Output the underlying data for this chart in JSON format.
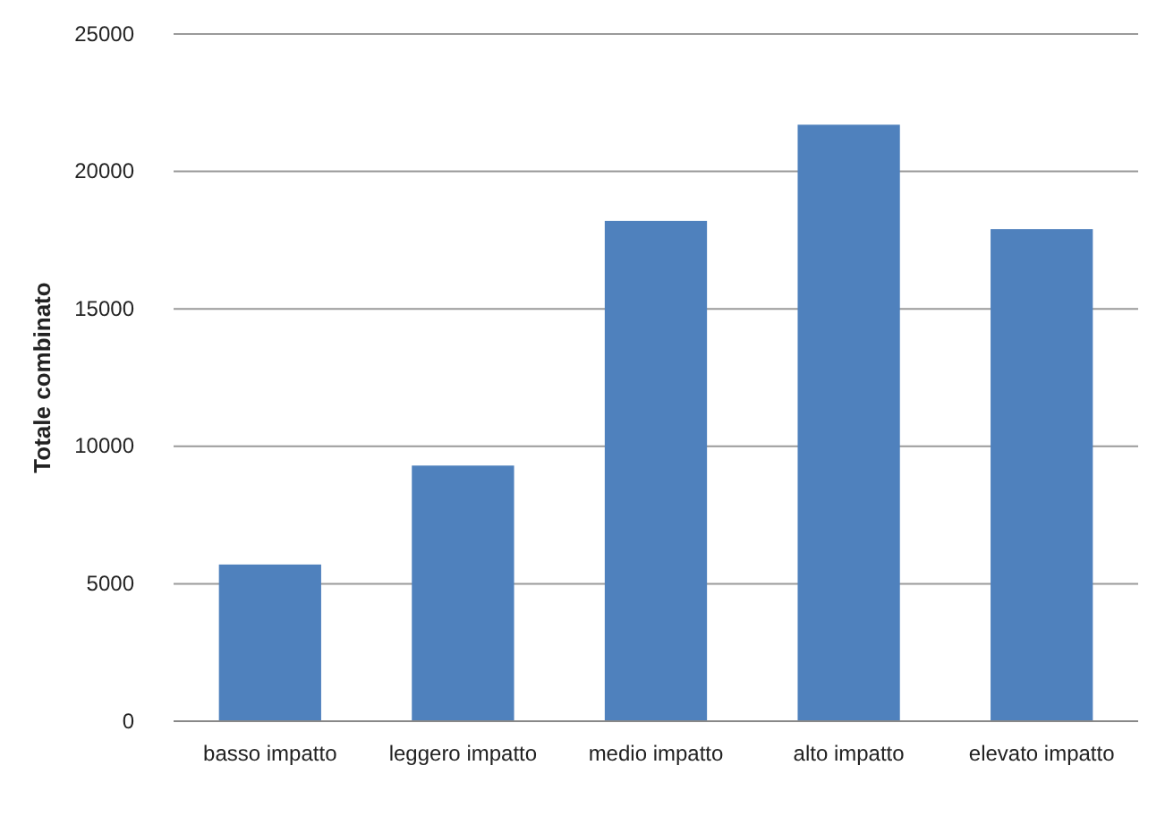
{
  "chart_data": {
    "type": "bar",
    "ylabel": "Totale combinato",
    "categories": [
      "basso impatto",
      "leggero impatto",
      "medio impatto",
      "alto impatto",
      "elevato impatto"
    ],
    "values": [
      5700,
      9300,
      18200,
      21700,
      17900
    ],
    "color": "#4f81bd",
    "ylim": [
      0,
      25000
    ],
    "yticks": [
      0,
      5000,
      10000,
      15000,
      20000,
      25000
    ],
    "grid": "y"
  }
}
